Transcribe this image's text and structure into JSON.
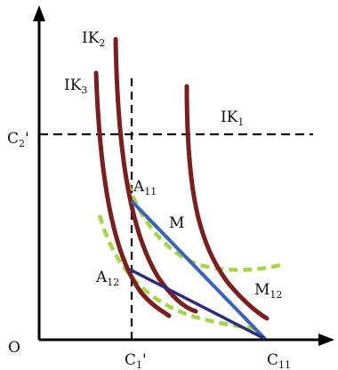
{
  "labels": {
    "origin": "O",
    "ik2": {
      "main": "IK",
      "sub": "2"
    },
    "ik3": {
      "main": "IK",
      "sub": "3"
    },
    "ik1": {
      "main": "IK",
      "sub": "1"
    },
    "c2p": {
      "main": "C",
      "sub": "2",
      "prime": "'"
    },
    "c1p": {
      "main": "C",
      "sub": "1",
      "prime": "'"
    },
    "c11": {
      "main": "C",
      "sub": "11"
    },
    "a11": {
      "main": "A",
      "sub": "11"
    },
    "a12": {
      "main": "A",
      "sub": "12"
    },
    "m": "M",
    "m12": {
      "main": "M",
      "sub": "12"
    }
  },
  "colors": {
    "axis": "#000000",
    "indifference_curve": "#7a1f1f",
    "budget_line_blue": "#3b63b8",
    "budget_line_navy": "#2b2d7a",
    "dashed_green": "#a8d44a",
    "guide_dash": "#000000"
  }
}
